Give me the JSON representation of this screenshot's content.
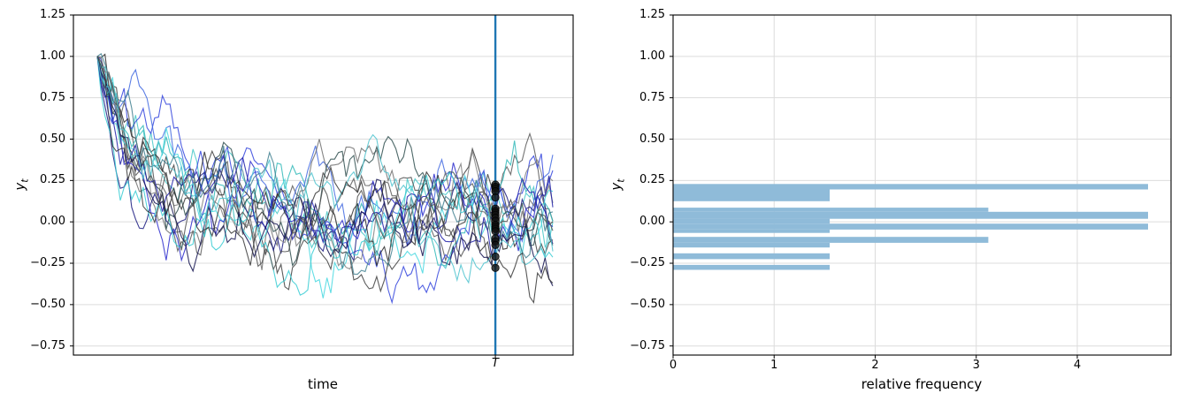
{
  "figure": {
    "background": "#ffffff",
    "grid_color": "#dcdcdc",
    "spine_color": "#000000"
  },
  "left_plot": {
    "xlabel": "time",
    "ylabel_letter": "y",
    "ylabel_sub": "t",
    "x_tick_label": "T",
    "ytick_labels": [
      "1.25",
      "1.00",
      "0.75",
      "0.50",
      "0.25",
      "0.00",
      "−0.25",
      "−0.50",
      "−0.75"
    ]
  },
  "right_plot": {
    "xlabel": "relative frequency",
    "ylabel_letter": "y",
    "ylabel_sub": "t",
    "xtick_labels": [
      "0",
      "1",
      "2",
      "3",
      "4"
    ],
    "ytick_labels": [
      "1.25",
      "1.00",
      "0.75",
      "0.50",
      "0.25",
      "0.00",
      "−0.25",
      "−0.50",
      "−0.75"
    ]
  },
  "chart_data": [
    {
      "type": "line",
      "title": "",
      "xlabel": "time",
      "ylabel": "y_t",
      "ylim": [
        -0.805,
        1.25
      ],
      "yticks": [
        1.25,
        1.0,
        0.75,
        0.5,
        0.25,
        0.0,
        -0.25,
        -0.5,
        -0.75
      ],
      "x_tick_labels": [
        "T"
      ],
      "grid": true,
      "n_series": 20,
      "series_model": {
        "type": "AR1",
        "y0": 1.0,
        "phi": 0.92,
        "sigma": 0.075,
        "n_points": 120,
        "T_index": 104
      },
      "vline_at_T_color": "#1f77b4",
      "marker_color": "#111111",
      "marker_values_at_T": [
        0.225,
        0.212,
        0.2,
        0.185,
        0.148,
        0.08,
        0.066,
        0.055,
        0.042,
        0.025,
        0.005,
        -0.018,
        -0.03,
        -0.042,
        -0.057,
        -0.1,
        -0.118,
        -0.14,
        -0.21,
        -0.278
      ],
      "series_colors": [
        "#45c8c8",
        "#5a5a5a",
        "#3344dd",
        "#404040",
        "#30b8b8",
        "#4169e1",
        "#6e6e6e",
        "#1a1a80",
        "#48d8e0",
        "#2d2d2d",
        "#2b2bcc",
        "#808080",
        "#2f4f4f",
        "#38cdd4",
        "#2020a8",
        "#505050",
        "#3f7f8f",
        "#12124f",
        "#4fc3cf",
        "#383838"
      ]
    },
    {
      "type": "bar",
      "orientation": "horizontal",
      "title": "",
      "xlabel": "relative frequency",
      "ylabel": "y_t",
      "xlim": [
        0,
        4.928
      ],
      "ylim": [
        -0.805,
        1.25
      ],
      "xticks": [
        0,
        1,
        2,
        3,
        4
      ],
      "yticks": [
        1.25,
        1.0,
        0.75,
        0.5,
        0.25,
        0.0,
        -0.25,
        -0.5,
        -0.75
      ],
      "grid": true,
      "bar_color": "#8fbbd9",
      "bars": [
        {
          "y_bottom": 0.196,
          "y_top": 0.229,
          "value": 4.7
        },
        {
          "y_bottom": 0.125,
          "y_top": 0.196,
          "value": 1.55
        },
        {
          "y_bottom": 0.061,
          "y_top": 0.086,
          "value": 3.12
        },
        {
          "y_bottom": 0.019,
          "y_top": 0.061,
          "value": 4.7
        },
        {
          "y_bottom": -0.011,
          "y_top": 0.019,
          "value": 1.55
        },
        {
          "y_bottom": -0.047,
          "y_top": -0.011,
          "value": 4.7
        },
        {
          "y_bottom": -0.067,
          "y_top": -0.047,
          "value": 1.55
        },
        {
          "y_bottom": -0.127,
          "y_top": -0.091,
          "value": 3.12
        },
        {
          "y_bottom": -0.155,
          "y_top": -0.127,
          "value": 1.55
        },
        {
          "y_bottom": -0.225,
          "y_top": -0.19,
          "value": 1.55
        },
        {
          "y_bottom": -0.29,
          "y_top": -0.26,
          "value": 1.55
        }
      ]
    }
  ]
}
